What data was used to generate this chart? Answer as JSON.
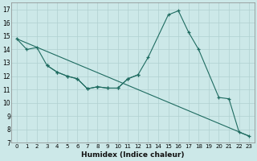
{
  "xlabel": "Humidex (Indice chaleur)",
  "bg_color": "#cce8e8",
  "grid_color": "#b0d0d0",
  "line_color": "#1e6b60",
  "xlim": [
    -0.5,
    23.5
  ],
  "ylim": [
    7,
    17.5
  ],
  "xticks": [
    0,
    1,
    2,
    3,
    4,
    5,
    6,
    7,
    8,
    9,
    10,
    11,
    12,
    13,
    14,
    15,
    16,
    17,
    18,
    19,
    20,
    21,
    22,
    23
  ],
  "yticks": [
    7,
    8,
    9,
    10,
    11,
    12,
    13,
    14,
    15,
    16,
    17
  ],
  "peak_x": [
    0,
    1,
    2,
    3,
    4,
    5,
    6,
    7,
    8,
    9,
    10,
    11,
    12,
    13,
    15,
    16,
    17,
    18,
    20,
    21,
    22,
    23
  ],
  "peak_y": [
    14.8,
    14.0,
    14.15,
    12.8,
    12.3,
    12.0,
    11.8,
    11.05,
    11.2,
    11.1,
    11.1,
    11.8,
    12.1,
    13.4,
    16.6,
    16.9,
    15.3,
    14.0,
    10.4,
    10.3,
    7.8,
    7.5
  ],
  "dip_x": [
    3,
    4,
    5,
    6,
    7,
    8,
    9,
    10,
    11,
    12
  ],
  "dip_y": [
    12.8,
    12.3,
    12.0,
    11.8,
    11.05,
    11.2,
    11.1,
    11.1,
    11.8,
    12.1
  ],
  "trend_x": [
    0,
    23
  ],
  "trend_y": [
    14.8,
    7.5
  ]
}
